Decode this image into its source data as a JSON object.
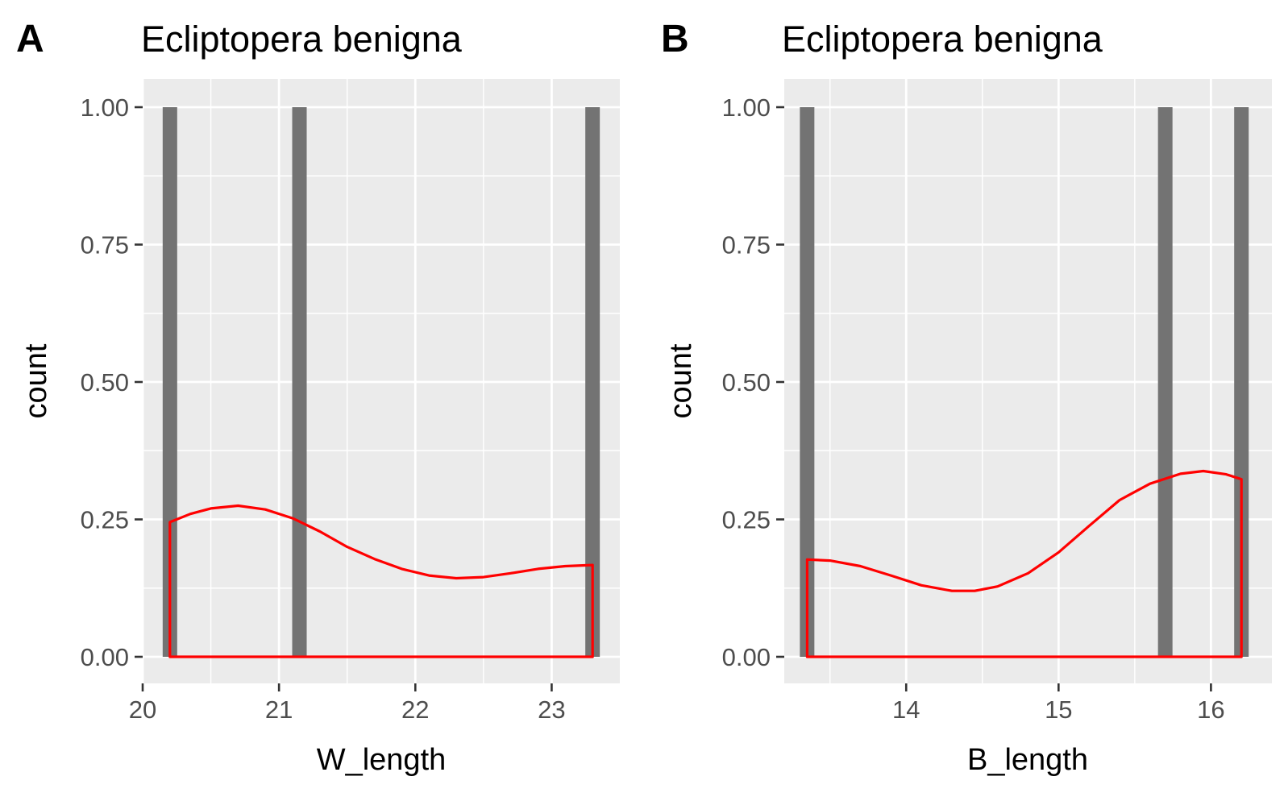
{
  "chart_data": [
    {
      "type": "histogram",
      "panel_label": "A",
      "title": "Ecliptopera benigna",
      "xlabel": "W_length",
      "ylabel": "count",
      "xlim": [
        20.0,
        23.5
      ],
      "ylim": [
        0,
        1.0
      ],
      "x_ticks": [
        20,
        21,
        22,
        23
      ],
      "x_tick_labels": [
        "20",
        "21",
        "22",
        "23"
      ],
      "y_ticks": [
        0,
        0.25,
        0.5,
        0.75,
        1.0
      ],
      "y_tick_labels": [
        "0.00",
        "0.25",
        "0.50",
        "0.75",
        "1.00"
      ],
      "bars": [
        {
          "x": 20.2,
          "count": 1
        },
        {
          "x": 21.15,
          "count": 1
        },
        {
          "x": 23.3,
          "count": 1
        }
      ],
      "density_curve": {
        "color": "#ff0000",
        "x": [
          20.2,
          20.35,
          20.5,
          20.7,
          20.9,
          21.1,
          21.3,
          21.5,
          21.7,
          21.9,
          22.1,
          22.3,
          22.5,
          22.7,
          22.9,
          23.1,
          23.3
        ],
        "y": [
          0.245,
          0.26,
          0.27,
          0.275,
          0.268,
          0.252,
          0.228,
          0.2,
          0.178,
          0.16,
          0.148,
          0.143,
          0.145,
          0.152,
          0.16,
          0.165,
          0.167
        ]
      },
      "bar_color": "#737373",
      "panel_background": "#ebebeb",
      "grid": true
    },
    {
      "type": "histogram",
      "panel_label": "B",
      "title": "Ecliptopera benigna",
      "xlabel": "B_length",
      "ylabel": "count",
      "xlim": [
        13.2,
        16.4
      ],
      "ylim": [
        0,
        1.0
      ],
      "x_ticks": [
        14,
        15,
        16
      ],
      "x_tick_labels": [
        "14",
        "15",
        "16"
      ],
      "y_ticks": [
        0,
        0.25,
        0.5,
        0.75,
        1.0
      ],
      "y_tick_labels": [
        "0.00",
        "0.25",
        "0.50",
        "0.75",
        "1.00"
      ],
      "bars": [
        {
          "x": 13.35,
          "count": 1
        },
        {
          "x": 15.7,
          "count": 1
        },
        {
          "x": 16.2,
          "count": 1
        }
      ],
      "density_curve": {
        "color": "#ff0000",
        "x": [
          13.35,
          13.5,
          13.7,
          13.9,
          14.1,
          14.3,
          14.45,
          14.6,
          14.8,
          15.0,
          15.2,
          15.4,
          15.6,
          15.8,
          15.95,
          16.1,
          16.2
        ],
        "y": [
          0.177,
          0.175,
          0.165,
          0.148,
          0.13,
          0.12,
          0.12,
          0.128,
          0.152,
          0.19,
          0.238,
          0.285,
          0.315,
          0.333,
          0.338,
          0.332,
          0.323
        ]
      },
      "bar_color": "#737373",
      "panel_background": "#ebebeb",
      "grid": true
    }
  ]
}
